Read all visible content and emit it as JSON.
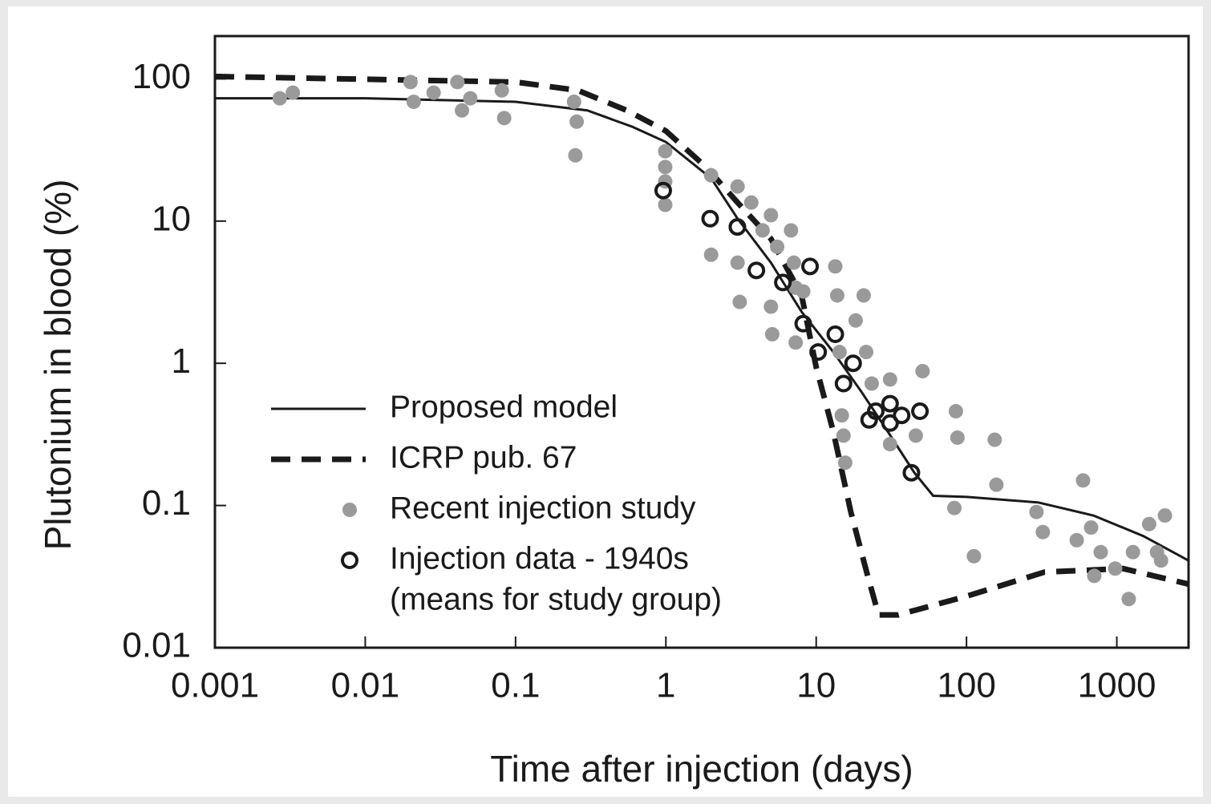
{
  "chart_data": {
    "type": "scatter",
    "x_label": "Time after injection (days)",
    "y_label": "Plutonium in blood (%)",
    "xlog": true,
    "ylog": true,
    "xlim": [
      0.001,
      3000
    ],
    "ylim": [
      0.01,
      200
    ],
    "xticks": [
      0.001,
      0.01,
      0.1,
      1,
      10,
      100,
      1000
    ],
    "yticks": [
      0.01,
      0.1,
      1,
      10,
      100
    ],
    "grid": false,
    "legend": "lower left",
    "series": [
      {
        "name": "Proposed model",
        "color": "#1a1a1a",
        "style": "solid",
        "x": [
          0.001,
          0.01,
          0.1,
          0.3,
          0.6,
          1,
          2,
          3,
          5,
          8,
          13,
          20,
          30,
          45,
          60,
          100,
          300,
          700,
          1500,
          3000
        ],
        "values": [
          73,
          73,
          69,
          60,
          46,
          36,
          20,
          10.4,
          5.1,
          2.3,
          1.2,
          0.63,
          0.33,
          0.17,
          0.117,
          0.115,
          0.105,
          0.085,
          0.061,
          0.041
        ]
      },
      {
        "name": "ICRP  pub. 67",
        "color": "#1a1a1a",
        "style": "dashed",
        "x": [
          0.001,
          0.1,
          0.26,
          0.55,
          1,
          1.85,
          3,
          5,
          8,
          10,
          13,
          17,
          22,
          26,
          35,
          100,
          330,
          1100,
          3000
        ],
        "values": [
          104,
          95,
          83,
          60,
          43,
          24,
          13.5,
          7.5,
          3.0,
          0.94,
          0.33,
          0.09,
          0.032,
          0.017,
          0.017,
          0.023,
          0.034,
          0.036,
          0.028
        ]
      },
      {
        "name": "Recent injection study",
        "color": "#9a9a9a",
        "marker": "filled",
        "x": [
          0.0027,
          0.0033,
          0.02,
          0.021,
          0.0285,
          0.041,
          0.044,
          0.05,
          0.081,
          0.084,
          0.245,
          0.255,
          0.25,
          0.99,
          0.99,
          0.99,
          0.99,
          2.0,
          2.0,
          3.0,
          3.0,
          3.1,
          3.7,
          4.4,
          5.0,
          5.0,
          5.1,
          5.5,
          6.8,
          7.1,
          7.3,
          7.3,
          8.2,
          13.4,
          13.8,
          14.3,
          14.8,
          15.2,
          15.6,
          18.3,
          20.7,
          21.5,
          23.4,
          31,
          31,
          46,
          51,
          85,
          87,
          83,
          154,
          112,
          158,
          292,
          322,
          541,
          596,
          674,
          708,
          781,
          975,
          1200,
          1280,
          1640,
          1850,
          2090,
          1970
        ],
        "values": [
          73,
          80,
          95,
          69,
          80,
          95,
          60,
          73,
          83,
          53,
          69,
          50,
          29,
          31,
          24,
          19,
          13,
          21,
          5.8,
          17.5,
          5.1,
          2.7,
          13.5,
          8.6,
          11,
          2.5,
          1.6,
          6.6,
          8.6,
          5.1,
          3.4,
          1.4,
          3.2,
          4.8,
          3.0,
          1.2,
          0.43,
          0.31,
          0.2,
          2.0,
          3.0,
          1.2,
          0.72,
          0.77,
          0.27,
          0.31,
          0.88,
          0.46,
          0.3,
          0.096,
          0.29,
          0.044,
          0.14,
          0.09,
          0.065,
          0.057,
          0.15,
          0.07,
          0.032,
          0.047,
          0.036,
          0.022,
          0.047,
          0.074,
          0.047,
          0.085,
          0.041
        ]
      },
      {
        "name": "Injection data - 1940s",
        "legend_note": "(means for study group)",
        "color": "#1a1a1a",
        "marker": "open",
        "x": [
          0.96,
          1.97,
          2.99,
          4.0,
          6.0,
          9.1,
          8.2,
          10.3,
          13.4,
          15.2,
          17.6,
          22.5,
          24.9,
          31,
          31,
          37,
          49,
          43
        ],
        "values": [
          16.4,
          10.4,
          9.1,
          4.5,
          3.7,
          4.8,
          1.9,
          1.2,
          1.6,
          0.72,
          1.0,
          0.4,
          0.46,
          0.52,
          0.38,
          0.43,
          0.46,
          0.17
        ]
      }
    ]
  }
}
